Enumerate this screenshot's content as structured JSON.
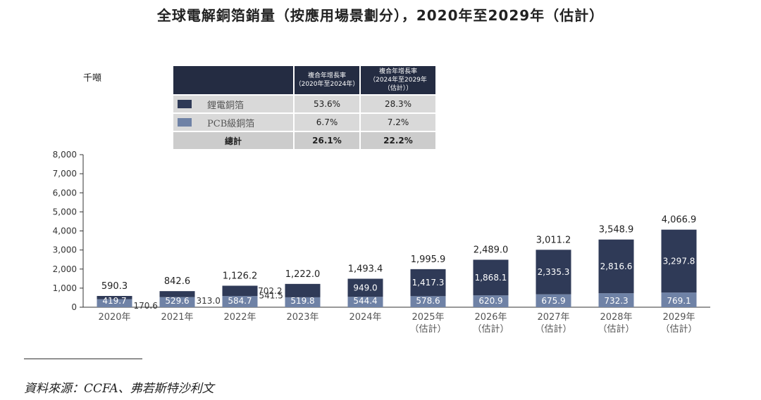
{
  "title": "全球電解銅箔銷量（按應用場景劃分），2020年至2029年（估計）",
  "unit": "千噸",
  "cagr_table": {
    "header_1": "複合年增長率\n（2020年至2024年）",
    "header_2": "複合年增長率\n（2024年至2029年\n（估計））",
    "rows": [
      {
        "label": "鋰電銅箔",
        "color": "#2f3a57",
        "v1": "53.6%",
        "v2": "28.3%"
      },
      {
        "label": "PCB級銅箔",
        "color": "#6f82a6",
        "v1": "6.7%",
        "v2": "7.2%"
      }
    ],
    "total": {
      "label": "總計",
      "v1": "26.1%",
      "v2": "22.2%"
    }
  },
  "chart_data": {
    "type": "bar",
    "stacked": true,
    "categories": [
      "2020年",
      "2021年",
      "2022年",
      "2023年",
      "2024年",
      "2025年\n（估計）",
      "2026年\n（估計）",
      "2027年\n（估計）",
      "2028年\n（估計）",
      "2029年\n（估計）"
    ],
    "series": [
      {
        "name": "PCB級銅箔",
        "color": "#6f82a6",
        "values": [
          419.7,
          529.6,
          584.7,
          519.8,
          544.4,
          578.6,
          620.9,
          675.9,
          732.3,
          769.1
        ]
      },
      {
        "name": "鋰電銅箔",
        "color": "#2f3a57",
        "values": [
          170.6,
          313.0,
          541.5,
          702.2,
          949.0,
          1417.3,
          1868.1,
          2335.3,
          2816.6,
          3297.8
        ]
      }
    ],
    "totals": [
      590.3,
      842.6,
      1126.2,
      1222.0,
      1493.4,
      1995.9,
      2489.0,
      3011.2,
      3548.9,
      4066.9
    ],
    "segment_labels": {
      "PCB級銅箔": [
        "419.7",
        "529.6",
        "584.7",
        "519.8",
        "544.4",
        "578.6",
        "620.9",
        "675.9",
        "732.3",
        "769.1"
      ],
      "鋰電銅箔": [
        "170.6",
        "313.0",
        "541.5",
        "702.2",
        "949.0",
        "1,417.3",
        "1,868.1",
        "2,335.3",
        "2,816.6",
        "3,297.8"
      ]
    },
    "total_labels": [
      "590.3",
      "842.6",
      "1,126.2",
      "1,222.0",
      "1,493.4",
      "1,995.9",
      "2,489.0",
      "3,011.2",
      "3,548.9",
      "4,066.9"
    ],
    "ylim": [
      0,
      8000
    ],
    "yticks": [
      0,
      1000,
      2000,
      3000,
      4000,
      5000,
      6000,
      7000,
      8000
    ],
    "ytick_labels": [
      "0",
      "1,000",
      "2,000",
      "3,000",
      "4,000",
      "5,000",
      "6,000",
      "7,000",
      "8,000"
    ],
    "xlabel": "",
    "ylabel": ""
  },
  "source": "資料來源：CCFA、弗若斯特沙利文"
}
